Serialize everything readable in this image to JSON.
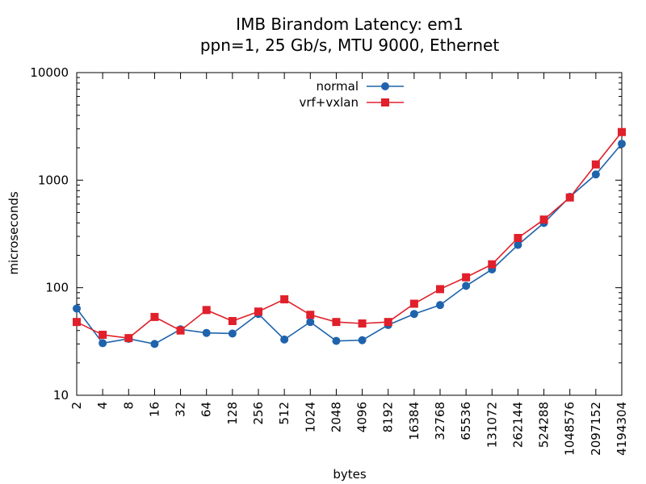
{
  "chart_data": {
    "type": "line",
    "title": "IMB Birandom Latency: em1",
    "subtitle": "ppn=1, 25 Gb/s, MTU 9000, Ethernet",
    "xlabel": "bytes",
    "ylabel": "microseconds",
    "x_scale": "log2",
    "y_scale": "log10",
    "ylim": [
      10,
      10000
    ],
    "y_ticks": [
      "10",
      "100",
      "1000",
      "10000"
    ],
    "x": [
      2,
      4,
      8,
      16,
      32,
      64,
      128,
      256,
      512,
      1024,
      2048,
      4096,
      8192,
      16384,
      32768,
      65536,
      131072,
      262144,
      524288,
      1048576,
      2097152,
      4194304
    ],
    "x_tick_labels": [
      "2",
      "4",
      "8",
      "16",
      "32",
      "64",
      "128",
      "256",
      "512",
      "1024",
      "2048",
      "4096",
      "8192",
      "16384",
      "32768",
      "65536",
      "131072",
      "262144",
      "524288",
      "1048576",
      "2097152",
      "4194304"
    ],
    "legend_position": "top-center",
    "grid": false,
    "series": [
      {
        "name": "normal",
        "color": "#1f63ac",
        "marker": "circle",
        "values": [
          64,
          30.5,
          33.5,
          30,
          41,
          38,
          37.5,
          57,
          33,
          48,
          32,
          32.5,
          45,
          57,
          69,
          104,
          148,
          250,
          400,
          700,
          1130,
          2180
        ]
      },
      {
        "name": "vrf+vxlan",
        "color": "#e0202b",
        "marker": "square",
        "values": [
          48,
          36.5,
          34,
          53.5,
          40,
          62,
          49,
          60,
          78,
          56,
          48,
          46.5,
          48,
          71,
          97,
          125,
          165,
          290,
          430,
          690,
          1400,
          2800
        ]
      }
    ]
  }
}
